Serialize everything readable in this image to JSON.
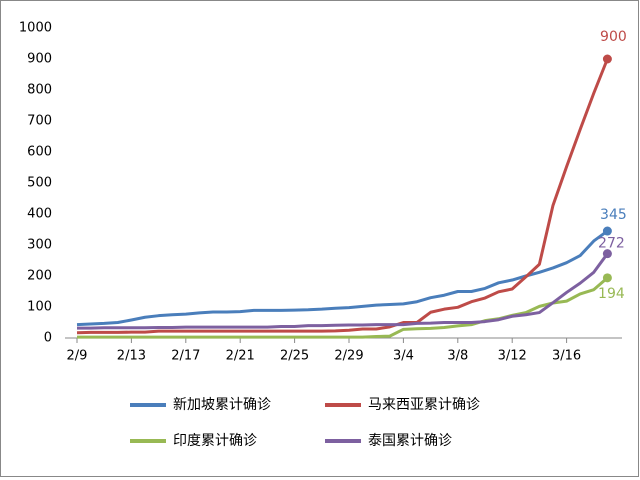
{
  "chart_data": {
    "type": "line",
    "categories": [
      "2/9",
      null,
      null,
      null,
      "2/13",
      null,
      null,
      null,
      "2/17",
      null,
      null,
      null,
      "2/21",
      null,
      null,
      null,
      "2/25",
      null,
      null,
      null,
      "2/29",
      null,
      null,
      null,
      "3/4",
      null,
      null,
      null,
      "3/8",
      null,
      null,
      null,
      "3/12",
      null,
      null,
      null,
      "3/16",
      null,
      null,
      null
    ],
    "series": [
      {
        "name": "新加坡累计确诊",
        "color": "#4a7ebb",
        "values": [
          43,
          45,
          47,
          50,
          58,
          67,
          72,
          75,
          77,
          81,
          84,
          84,
          85,
          89,
          89,
          89,
          90,
          91,
          93,
          96,
          98,
          102,
          106,
          108,
          110,
          117,
          130,
          138,
          150,
          150,
          160,
          178,
          187,
          200,
          212,
          226,
          243,
          266,
          313,
          345
        ]
      },
      {
        "name": "马来西亚累计确诊",
        "color": "#be4b48",
        "values": [
          17,
          18,
          18,
          18,
          19,
          19,
          22,
          22,
          22,
          22,
          22,
          22,
          22,
          22,
          22,
          22,
          22,
          22,
          22,
          23,
          25,
          29,
          29,
          36,
          50,
          50,
          83,
          93,
          99,
          117,
          129,
          149,
          158,
          197,
          238,
          428,
          553,
          673,
          790,
          900
        ]
      },
      {
        "name": "印度累计确诊",
        "color": "#98b954",
        "values": [
          3,
          3,
          3,
          3,
          3,
          3,
          3,
          3,
          3,
          3,
          3,
          3,
          3,
          3,
          3,
          3,
          3,
          3,
          3,
          3,
          3,
          3,
          5,
          6,
          28,
          30,
          31,
          34,
          39,
          43,
          56,
          62,
          73,
          82,
          102,
          113,
          119,
          142,
          156,
          194
        ]
      },
      {
        "name": "泰国累计确诊",
        "color": "#7d60a0",
        "values": [
          32,
          32,
          33,
          33,
          33,
          33,
          34,
          34,
          35,
          35,
          35,
          35,
          35,
          35,
          35,
          37,
          37,
          40,
          40,
          41,
          42,
          42,
          43,
          43,
          43,
          47,
          48,
          50,
          50,
          50,
          53,
          59,
          70,
          75,
          82,
          114,
          147,
          177,
          212,
          272
        ]
      }
    ],
    "ylim": [
      0,
      1000
    ],
    "yticks": [
      0,
      100,
      200,
      300,
      400,
      500,
      600,
      700,
      800,
      900,
      1000
    ],
    "grid": false,
    "legend": "bottom"
  }
}
